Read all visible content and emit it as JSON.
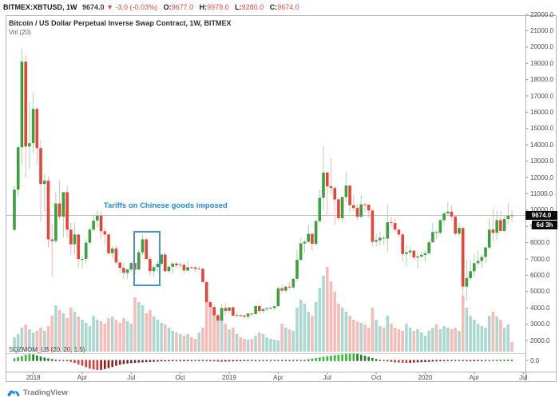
{
  "header": {
    "symbol": "BITMEX:XBTUSD, 1W",
    "last_price": "9674.0",
    "arrow": "▼",
    "change": "-3.0 (-0.03%)",
    "o_label": "O:",
    "open": "9677.0",
    "h_label": "H:",
    "high": "9979.0",
    "l_label": "L:",
    "low": "9280.0",
    "c_label": "C:",
    "close": "9674.0"
  },
  "legend": {
    "title": "Bitcoin / US Dollar Perpetual Inverse Swap Contract, 1W, BITMEX",
    "overlay": "Vol (20)"
  },
  "annotation": {
    "text": "Tariffs on Chinese goods imposed",
    "index": 23.7,
    "price": 10280
  },
  "highlight_box": {
    "start_index": 31.6,
    "end_index": 38.0,
    "top_price": 8700,
    "bottom_price": 5550
  },
  "price_axis": {
    "badge_price": "9674.0",
    "countdown": "6d 3h",
    "momentum_zero_label": "0.0"
  },
  "bottom_indicator_label": "SQZMOM_LB (20, 20, 1.5)",
  "logo_text": "TradingView",
  "colors": {
    "candle_up": "#3aa13e",
    "candle_down": "#e8443a",
    "wick_up": "#a9d4aa",
    "wick_down": "#f2b6b0",
    "vol_up": "#a7d7cf",
    "vol_down": "#f5b8b4",
    "mom_pos_rising": "#2ebd2e",
    "mom_pos_falling": "#1e7d22",
    "mom_neg_falling": "#e03c31",
    "mom_neg_rising": "#8f1f1f",
    "mom_dot": "#444444",
    "price_line": "#b8bcc4",
    "header_red": "#dd4b3e",
    "annotation_blue": "#1e88e5",
    "box_blue": "#4a90d9"
  },
  "chart_data": {
    "type": "candlestick",
    "title": "Bitcoin / US Dollar Perpetual Inverse Swap Contract, 1W, BITMEX",
    "symbol": "BITMEX:XBTUSD",
    "interval": "1W",
    "start_week": "2017-11-27",
    "weeks": 133,
    "current_price": 9674.0,
    "ylim": [
      1500,
      22000
    ],
    "price_ticks": [
      22000,
      21000,
      20000,
      19000,
      18000,
      17000,
      16000,
      15000,
      14000,
      13000,
      12000,
      11000,
      10000,
      9000,
      8000,
      7000,
      6000,
      5000,
      4000,
      3000,
      2000
    ],
    "time_ticks": [
      {
        "label": "2018",
        "index": 5
      },
      {
        "label": "Apr",
        "index": 18
      },
      {
        "label": "Jul",
        "index": 31
      },
      {
        "label": "Oct",
        "index": 44
      },
      {
        "label": "2019",
        "index": 57
      },
      {
        "label": "Apr",
        "index": 70
      },
      {
        "label": "Jul",
        "index": 83
      },
      {
        "label": "Oct",
        "index": 96
      },
      {
        "label": "2020",
        "index": 109
      },
      {
        "label": "Apr",
        "index": 122
      },
      {
        "label": "Jul",
        "index": 135
      }
    ],
    "ohlc": [
      [
        8790,
        11500,
        8650,
        11250
      ],
      [
        11250,
        13900,
        10800,
        13850
      ],
      [
        13850,
        19900,
        12800,
        19100
      ],
      [
        19100,
        19500,
        12000,
        13900
      ],
      [
        13900,
        16600,
        12500,
        14100
      ],
      [
        14100,
        17200,
        13500,
        16200
      ],
      [
        16200,
        16300,
        12800,
        13800
      ],
      [
        13800,
        14300,
        9300,
        11600
      ],
      [
        11600,
        12200,
        9900,
        11800
      ],
      [
        11800,
        12100,
        7700,
        8200
      ],
      [
        8200,
        9100,
        5900,
        8100
      ],
      [
        8100,
        11100,
        8000,
        10400
      ],
      [
        10400,
        11800,
        9400,
        9600
      ],
      [
        9600,
        11100,
        8300,
        11100
      ],
      [
        11100,
        11500,
        8300,
        8800
      ],
      [
        8800,
        9200,
        7300,
        7900
      ],
      [
        7900,
        9200,
        7300,
        8500
      ],
      [
        8500,
        8500,
        6400,
        7000
      ],
      [
        7000,
        7200,
        6400,
        7000
      ],
      [
        7000,
        8200,
        6700,
        8000
      ],
      [
        8000,
        8950,
        7850,
        8800
      ],
      [
        8800,
        9770,
        8650,
        9350
      ],
      [
        9350,
        9990,
        8950,
        9650
      ],
      [
        9650,
        9940,
        8220,
        8700
      ],
      [
        8700,
        8900,
        7900,
        8500
      ],
      [
        8500,
        8560,
        7250,
        7350
      ],
      [
        7350,
        7800,
        7030,
        7640
      ],
      [
        7640,
        7780,
        6640,
        6780
      ],
      [
        6780,
        6840,
        6120,
        6450
      ],
      [
        6450,
        6800,
        5750,
        6150
      ],
      [
        6150,
        6400,
        5770,
        6350
      ],
      [
        6350,
        6850,
        6250,
        6750
      ],
      [
        6750,
        6780,
        6080,
        6350
      ],
      [
        6350,
        7580,
        6300,
        7400
      ],
      [
        7400,
        8500,
        7240,
        8200
      ],
      [
        8200,
        8250,
        6950,
        7000
      ],
      [
        7000,
        7170,
        5950,
        6250
      ],
      [
        6250,
        6600,
        5880,
        6500
      ],
      [
        6500,
        6900,
        6230,
        6700
      ],
      [
        6700,
        7300,
        6600,
        7270
      ],
      [
        7270,
        7400,
        6150,
        6250
      ],
      [
        6250,
        6600,
        6150,
        6520
      ],
      [
        6520,
        6800,
        6100,
        6720
      ],
      [
        6720,
        6830,
        6430,
        6600
      ],
      [
        6600,
        6790,
        6430,
        6640
      ],
      [
        6640,
        6700,
        6100,
        6290
      ],
      [
        6290,
        6950,
        6200,
        6490
      ],
      [
        6490,
        6550,
        6390,
        6480
      ],
      [
        6480,
        6560,
        6180,
        6390
      ],
      [
        6390,
        6570,
        6330,
        6400
      ],
      [
        6400,
        6440,
        5520,
        5580
      ],
      [
        5580,
        5650,
        4250,
        4350
      ],
      [
        4350,
        4450,
        3650,
        4050
      ],
      [
        4050,
        4200,
        3350,
        3550
      ],
      [
        3550,
        3650,
        3150,
        3220
      ],
      [
        3220,
        4250,
        3180,
        3990
      ],
      [
        3990,
        4300,
        3580,
        3820
      ],
      [
        3820,
        4050,
        3640,
        4030
      ],
      [
        4030,
        4110,
        3500,
        3520
      ],
      [
        3520,
        3740,
        3470,
        3550
      ],
      [
        3550,
        3640,
        3430,
        3540
      ],
      [
        3540,
        3570,
        3330,
        3460
      ],
      [
        3460,
        3680,
        3330,
        3650
      ],
      [
        3650,
        3680,
        3520,
        3620
      ],
      [
        3620,
        4180,
        3610,
        4110
      ],
      [
        4110,
        4130,
        3660,
        3810
      ],
      [
        3810,
        3940,
        3650,
        3920
      ],
      [
        3920,
        4040,
        3830,
        3980
      ],
      [
        3980,
        4090,
        3900,
        3990
      ],
      [
        3990,
        4110,
        3860,
        4100
      ],
      [
        4100,
        5340,
        4080,
        5200
      ],
      [
        5200,
        5460,
        4910,
        5060
      ],
      [
        5060,
        5360,
        4950,
        5300
      ],
      [
        5300,
        5600,
        5150,
        5250
      ],
      [
        5250,
        5810,
        5150,
        5790
      ],
      [
        5790,
        7580,
        5640,
        6950
      ],
      [
        6950,
        8320,
        6880,
        7950
      ],
      [
        7950,
        8150,
        7380,
        8050
      ],
      [
        8050,
        9090,
        8000,
        8540
      ],
      [
        8540,
        8560,
        7480,
        7930
      ],
      [
        7930,
        9390,
        7810,
        9320
      ],
      [
        9320,
        11250,
        9220,
        10750
      ],
      [
        10750,
        13900,
        9970,
        12300
      ],
      [
        12300,
        12350,
        9650,
        11450
      ],
      [
        11450,
        13200,
        11000,
        11350
      ],
      [
        11350,
        11450,
        9100,
        10650
      ],
      [
        10650,
        10800,
        9400,
        9500
      ],
      [
        9500,
        10480,
        9230,
        10800
      ],
      [
        10800,
        12320,
        10500,
        11500
      ],
      [
        11500,
        11550,
        9870,
        10300
      ],
      [
        10300,
        10950,
        9900,
        10130
      ],
      [
        10130,
        10380,
        9350,
        9590
      ],
      [
        9590,
        10900,
        9450,
        10350
      ],
      [
        10350,
        10460,
        9880,
        10330
      ],
      [
        10330,
        10350,
        9520,
        9970
      ],
      [
        9970,
        10030,
        7750,
        8050
      ],
      [
        8050,
        8540,
        7720,
        8150
      ],
      [
        8150,
        8700,
        7810,
        8300
      ],
      [
        8300,
        8440,
        7850,
        8250
      ],
      [
        8250,
        10350,
        7400,
        9250
      ],
      [
        9250,
        9600,
        8950,
        9200
      ],
      [
        9200,
        9500,
        8650,
        8800
      ],
      [
        8800,
        8850,
        8350,
        8500
      ],
      [
        8500,
        8600,
        6850,
        7300
      ],
      [
        7300,
        7870,
        6520,
        7400
      ],
      [
        7400,
        7750,
        7150,
        7510
      ],
      [
        7510,
        7530,
        6980,
        7090
      ],
      [
        7090,
        7380,
        6410,
        7150
      ],
      [
        7150,
        7440,
        7080,
        7250
      ],
      [
        7250,
        7500,
        6850,
        7350
      ],
      [
        7350,
        8200,
        7300,
        8020
      ],
      [
        8020,
        9200,
        8000,
        8650
      ],
      [
        8650,
        8750,
        8200,
        8600
      ],
      [
        8600,
        9450,
        8520,
        9380
      ],
      [
        9380,
        9860,
        9090,
        9800
      ],
      [
        9800,
        10500,
        9660,
        9900
      ],
      [
        9900,
        10290,
        9380,
        9600
      ],
      [
        9600,
        9700,
        8400,
        8550
      ],
      [
        8550,
        9200,
        8400,
        8900
      ],
      [
        8900,
        8900,
        3850,
        5300
      ],
      [
        5300,
        6900,
        4450,
        5820
      ],
      [
        5820,
        6980,
        5680,
        6250
      ],
      [
        6250,
        7300,
        5870,
        6740
      ],
      [
        6740,
        7470,
        6600,
        6880
      ],
      [
        6880,
        7300,
        6460,
        7120
      ],
      [
        7120,
        7780,
        6760,
        7700
      ],
      [
        7700,
        9480,
        7620,
        8800
      ],
      [
        8800,
        10070,
        8100,
        8600
      ],
      [
        8600,
        9950,
        8150,
        9380
      ],
      [
        9380,
        9940,
        8650,
        8720
      ],
      [
        8720,
        9700,
        8630,
        9450
      ],
      [
        9450,
        10430,
        9100,
        9650
      ],
      [
        9677,
        9979,
        9280,
        9674
      ]
    ],
    "volume": [
      18,
      22,
      30,
      34,
      28,
      24,
      26,
      30,
      26,
      32,
      45,
      58,
      52,
      48,
      42,
      55,
      50,
      44,
      40,
      36,
      32,
      45,
      40,
      38,
      35,
      42,
      44,
      40,
      36,
      42,
      38,
      35,
      68,
      62,
      58,
      48,
      52,
      44,
      40,
      36,
      34,
      30,
      26,
      24,
      22,
      20,
      22,
      18,
      16,
      24,
      30,
      62,
      58,
      50,
      40,
      45,
      35,
      28,
      30,
      22,
      18,
      16,
      15,
      16,
      20,
      24,
      22,
      18,
      16,
      15,
      14,
      35,
      30,
      28,
      26,
      55,
      65,
      60,
      50,
      45,
      62,
      80,
      95,
      106,
      88,
      75,
      60,
      55,
      50,
      45,
      40,
      38,
      36,
      34,
      30,
      55,
      40,
      32,
      30,
      45,
      35,
      30,
      28,
      26,
      35,
      30,
      26,
      28,
      24,
      20,
      26,
      30,
      34,
      28,
      32,
      30,
      28,
      30,
      26,
      70,
      55,
      45,
      40,
      35,
      32,
      30,
      45,
      50,
      44,
      40,
      30,
      34,
      12
    ],
    "momentum": [
      0.3,
      0.45,
      0.6,
      0.8,
      0.9,
      0.85,
      0.7,
      0.55,
      0.4,
      0.28,
      0.18,
      0.1,
      0.04,
      -0.02,
      -0.08,
      -0.15,
      -0.25,
      -0.4,
      -0.55,
      -0.7,
      -0.85,
      -0.95,
      -1.0,
      -0.98,
      -0.9,
      -0.8,
      -0.68,
      -0.55,
      -0.45,
      -0.38,
      -0.32,
      -0.28,
      -0.25,
      -0.22,
      -0.2,
      -0.18,
      -0.16,
      -0.14,
      -0.12,
      -0.1,
      -0.09,
      -0.08,
      -0.07,
      -0.08,
      -0.09,
      -0.08,
      -0.07,
      -0.06,
      -0.06,
      -0.05,
      -0.05,
      -0.06,
      -0.08,
      -0.1,
      -0.12,
      -0.13,
      -0.12,
      -0.1,
      -0.09,
      -0.08,
      -0.07,
      -0.06,
      -0.05,
      -0.05,
      -0.04,
      -0.04,
      -0.04,
      -0.03,
      -0.03,
      -0.03,
      -0.03,
      -0.02,
      -0.02,
      -0.01,
      0.0,
      0.02,
      0.05,
      0.1,
      0.18,
      0.26,
      0.34,
      0.42,
      0.5,
      0.58,
      0.66,
      0.74,
      0.8,
      0.86,
      0.9,
      0.93,
      0.95,
      0.9,
      0.8,
      0.65,
      0.5,
      0.35,
      0.2,
      0.08,
      -0.02,
      -0.1,
      -0.16,
      -0.2,
      -0.22,
      -0.24,
      -0.25,
      -0.24,
      -0.22,
      -0.2,
      -0.18,
      -0.16,
      -0.14,
      -0.12,
      -0.1,
      -0.08,
      -0.06,
      -0.05,
      -0.04,
      -0.04,
      -0.05,
      -0.06,
      -0.08,
      -0.1,
      -0.09,
      -0.07,
      -0.05,
      -0.02,
      0.02,
      0.05,
      0.08,
      0.1,
      0.12,
      0.13,
      0.14
    ]
  }
}
